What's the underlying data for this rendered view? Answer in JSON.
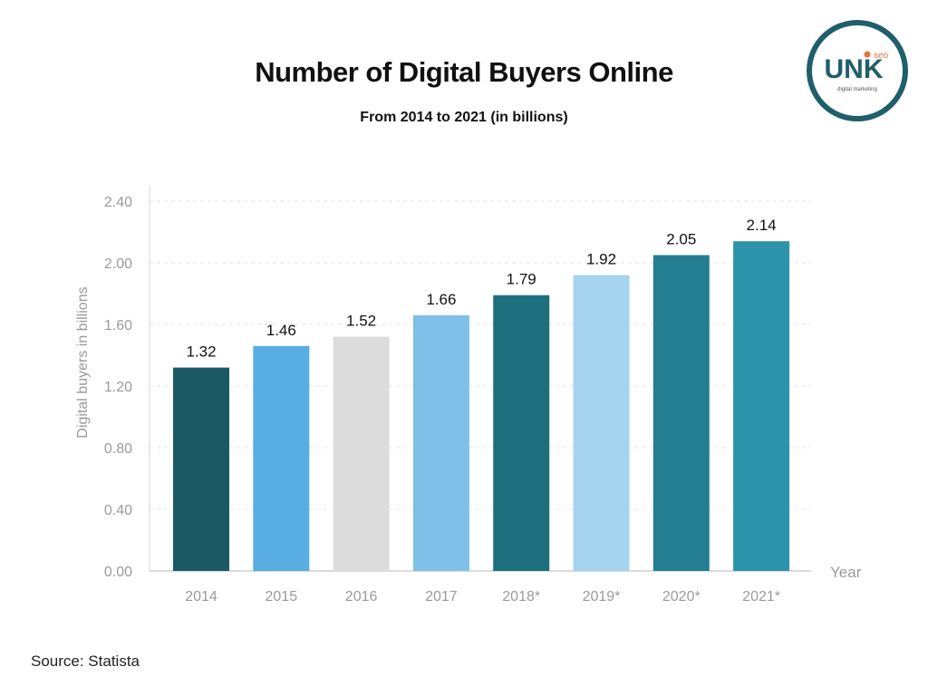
{
  "title": "Number of Digital Buyers Online",
  "subtitle": "From 2014 to 2021 (in billions)",
  "source": "Source: Statista",
  "logo": {
    "main_text": "UNK",
    "badge_text": "seo",
    "tagline": "digital marketing"
  },
  "colors": {
    "logo_ring": "#1f5f6b",
    "logo_accent": "#e0763a",
    "grid": "#e6e6e6",
    "axis_text": "#9a9a9a"
  },
  "chart_data": {
    "type": "bar",
    "title": "Number of Digital Buyers Online",
    "subtitle": "From 2014 to 2021 (in billions)",
    "xlabel": "Year",
    "ylabel": "Digital buyers in billions",
    "categories": [
      "2014",
      "2015",
      "2016",
      "2017",
      "2018*",
      "2019*",
      "2020*",
      "2021*"
    ],
    "values": [
      1.32,
      1.46,
      1.52,
      1.66,
      1.79,
      1.92,
      2.05,
      2.14
    ],
    "value_labels": [
      "1.32",
      "1.46",
      "1.52",
      "1.66",
      "1.79",
      "1.92",
      "2.05",
      "2.14"
    ],
    "bar_colors": [
      "#1b5a64",
      "#58ade2",
      "#dcdcdc",
      "#7ec0e8",
      "#1e6f7e",
      "#a6d3ef",
      "#237e91",
      "#2b93aa"
    ],
    "yticks": [
      0,
      0.4,
      0.8,
      1.2,
      1.6,
      2.0,
      2.4
    ],
    "ytick_labels": [
      "0.00",
      "0.40",
      "0.80",
      "1.20",
      "1.60",
      "2.00",
      "2.40"
    ],
    "ylim": [
      0,
      2.5
    ],
    "grid": true,
    "legend": "none"
  }
}
